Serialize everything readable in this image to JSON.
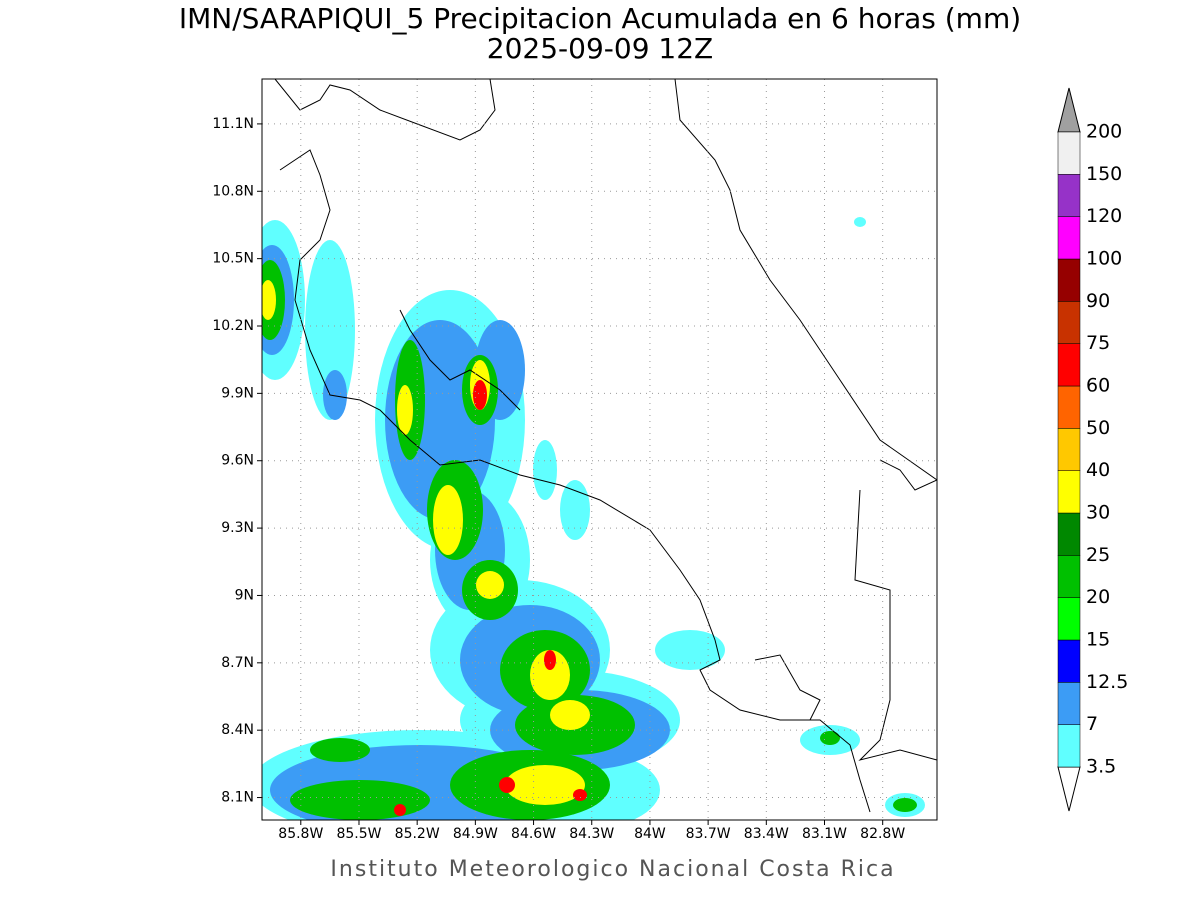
{
  "title": "IMN/SARAPIQUI_5 Precipitacion Acumulada en 6 horas (mm)",
  "subtitle": "2025-09-09 12Z",
  "footer": "Instituto Meteorologico Nacional Costa Rica",
  "map": {
    "lat_range": [
      8.0,
      11.3
    ],
    "lon_range": [
      -86.0,
      -82.52
    ],
    "lat_ticks": [
      {
        "value": 11.1,
        "label": "11.1N"
      },
      {
        "value": 10.8,
        "label": "10.8N"
      },
      {
        "value": 10.5,
        "label": "10.5N"
      },
      {
        "value": 10.2,
        "label": "10.2N"
      },
      {
        "value": 9.9,
        "label": "9.9N"
      },
      {
        "value": 9.6,
        "label": "9.6N"
      },
      {
        "value": 9.3,
        "label": "9.3N"
      },
      {
        "value": 9,
        "label": "9N"
      },
      {
        "value": 8.7,
        "label": "8.7N"
      },
      {
        "value": 8.4,
        "label": "8.4N"
      },
      {
        "value": 8.1,
        "label": "8.1N"
      }
    ],
    "lon_ticks": [
      {
        "value": -85.8,
        "label": "85.8W"
      },
      {
        "value": -85.5,
        "label": "85.5W"
      },
      {
        "value": -85.2,
        "label": "85.2W"
      },
      {
        "value": -84.9,
        "label": "84.9W"
      },
      {
        "value": -84.6,
        "label": "84.6W"
      },
      {
        "value": -84.3,
        "label": "84.3W"
      },
      {
        "value": -84,
        "label": "84W"
      },
      {
        "value": -83.7,
        "label": "83.7W"
      },
      {
        "value": -83.4,
        "label": "83.4W"
      },
      {
        "value": -83.1,
        "label": "83.1W"
      },
      {
        "value": -82.8,
        "label": "82.8W"
      }
    ]
  },
  "colorbar": {
    "levels": [
      3.5,
      7,
      12.5,
      15,
      20,
      25,
      30,
      40,
      50,
      60,
      75,
      90,
      100,
      120,
      150,
      200
    ],
    "colors": [
      "#ffffff",
      "#60ffff",
      "#3c9cf5",
      "#0000ff",
      "#00ff00",
      "#00c000",
      "#008800",
      "#ffff00",
      "#ffc800",
      "#ff6400",
      "#ff0000",
      "#c83200",
      "#960000",
      "#ff00ff",
      "#9632c8",
      "#f0f0f0",
      "#a0a0a0"
    ]
  }
}
